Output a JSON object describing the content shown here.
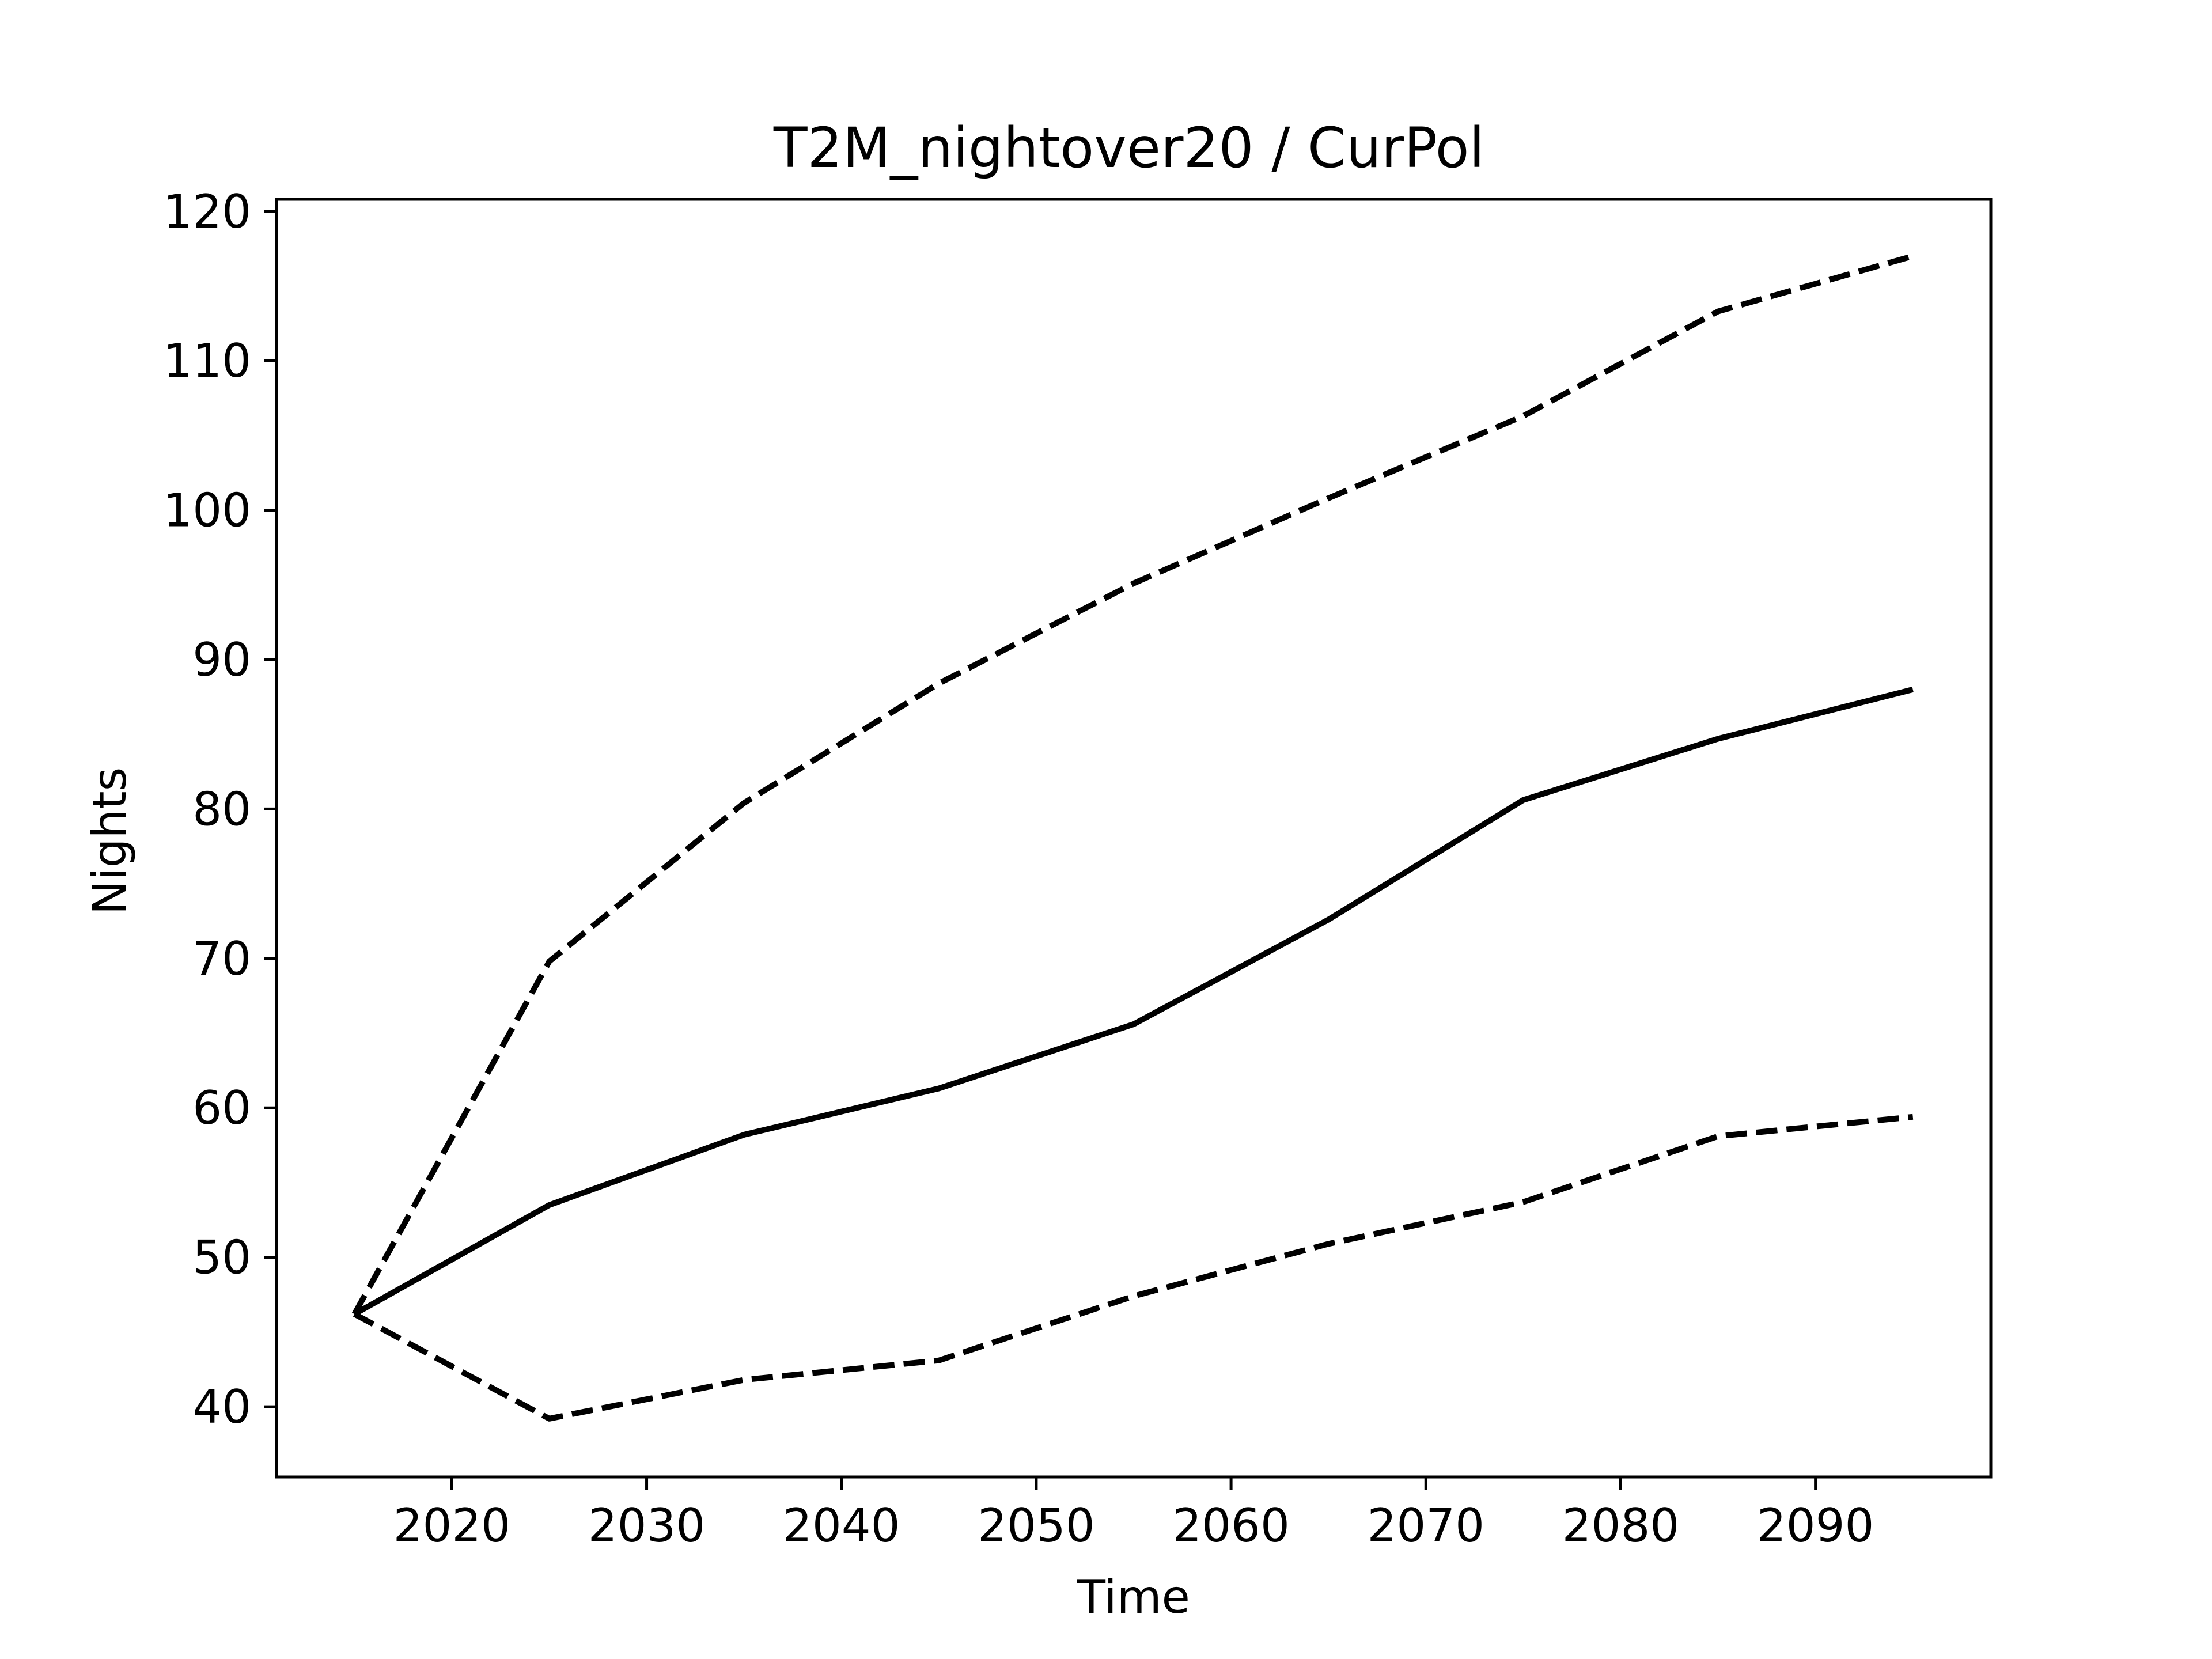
{
  "chart_data": {
    "type": "line",
    "title": "T2M_nightover20 / CurPol",
    "xlabel": "Time",
    "ylabel": "Nights",
    "xlim": [
      2011,
      2099
    ],
    "ylim": [
      35.3,
      120.8
    ],
    "xticks": [
      2020,
      2030,
      2040,
      2050,
      2060,
      2070,
      2080,
      2090
    ],
    "yticks": [
      40,
      50,
      60,
      70,
      80,
      90,
      100,
      110,
      120
    ],
    "grid": false,
    "x": [
      2015,
      2025,
      2035,
      2045,
      2055,
      2065,
      2075,
      2085,
      2095
    ],
    "series": [
      {
        "style": "solid",
        "color": "#000000",
        "values": [
          46.2,
          53.5,
          58.2,
          61.3,
          65.6,
          72.6,
          80.6,
          84.7,
          88.0
        ]
      },
      {
        "style": "dashed",
        "color": "#000000",
        "values": [
          46.2,
          69.8,
          80.4,
          88.4,
          95.1,
          100.8,
          106.3,
          113.3,
          117.0
        ]
      },
      {
        "style": "dashed",
        "color": "#000000",
        "values": [
          46.2,
          39.2,
          41.8,
          43.1,
          47.4,
          50.9,
          53.7,
          58.1,
          59.4
        ]
      }
    ]
  }
}
